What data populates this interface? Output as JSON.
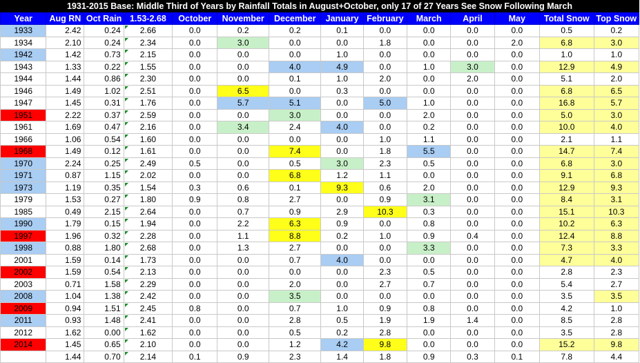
{
  "title": "1931-2015 Base: Middle Third of Years by Rainfall Totals in August+October, only 17 of 27 Years See Snow Following March",
  "headers": [
    "Year",
    "Aug RN",
    "Oct Rain",
    "1.53-2.68",
    "October",
    "November",
    "December",
    "January",
    "February",
    "March",
    "April",
    "May",
    "Total Snow",
    "Top Snow"
  ],
  "colors": {
    "title_bg": "#000000",
    "header_bg": "#0000ff",
    "year_blue": "#a9cdf3",
    "year_red": "#ff0000",
    "cell_yellow": "#ffff1a",
    "cell_green": "#c8f0c8",
    "cell_lightblue": "#a9cdf3",
    "total_paleyellow": "#ffff99"
  },
  "rows": [
    {
      "year": "1933",
      "year_hl": "blue",
      "cells": [
        "2.42",
        "0.24",
        "2.66",
        "0.0",
        "0.2",
        "0.2",
        "0.1",
        "0.0",
        "0.0",
        "0.0",
        "0.0",
        "0.5",
        "0.2"
      ],
      "hl": {}
    },
    {
      "year": "1934",
      "year_hl": "",
      "cells": [
        "2.10",
        "0.24",
        "2.34",
        "0.0",
        "3.0",
        "0.0",
        "0.0",
        "1.8",
        "0.0",
        "0.0",
        "2.0",
        "6.8",
        "3.0"
      ],
      "hl": {
        "5": "green",
        "12": "paleyellow",
        "13": "paleyellow"
      }
    },
    {
      "year": "1942",
      "year_hl": "blue",
      "cells": [
        "1.42",
        "0.73",
        "2.15",
        "0.0",
        "0.0",
        "0.0",
        "1.0",
        "0.0",
        "0.0",
        "0.0",
        "0.0",
        "1.0",
        "1.0"
      ],
      "hl": {}
    },
    {
      "year": "1943",
      "year_hl": "",
      "cells": [
        "1.33",
        "0.22",
        "1.55",
        "0.0",
        "0.0",
        "4.0",
        "4.9",
        "0.0",
        "1.0",
        "3.0",
        "0.0",
        "12.9",
        "4.9"
      ],
      "hl": {
        "6": "lightblue",
        "7": "lightblue",
        "10": "green",
        "12": "paleyellow",
        "13": "paleyellow"
      }
    },
    {
      "year": "1944",
      "year_hl": "",
      "cells": [
        "1.44",
        "0.86",
        "2.30",
        "0.0",
        "0.0",
        "0.1",
        "1.0",
        "2.0",
        "0.0",
        "2.0",
        "0.0",
        "5.1",
        "2.0"
      ],
      "hl": {}
    },
    {
      "year": "1946",
      "year_hl": "",
      "cells": [
        "1.49",
        "1.02",
        "2.51",
        "0.0",
        "6.5",
        "0.0",
        "0.3",
        "0.0",
        "0.0",
        "0.0",
        "0.0",
        "6.8",
        "6.5"
      ],
      "hl": {
        "5": "yellow",
        "12": "paleyellow",
        "13": "paleyellow"
      }
    },
    {
      "year": "1947",
      "year_hl": "",
      "cells": [
        "1.45",
        "0.31",
        "1.76",
        "0.0",
        "5.7",
        "5.1",
        "0.0",
        "5.0",
        "1.0",
        "0.0",
        "0.0",
        "16.8",
        "5.7"
      ],
      "hl": {
        "5": "lightblue",
        "6": "lightblue",
        "8": "lightblue",
        "12": "paleyellow",
        "13": "paleyellow"
      }
    },
    {
      "year": "1951",
      "year_hl": "red",
      "cells": [
        "2.22",
        "0.37",
        "2.59",
        "0.0",
        "0.0",
        "3.0",
        "0.0",
        "0.0",
        "2.0",
        "0.0",
        "0.0",
        "5.0",
        "3.0"
      ],
      "hl": {
        "6": "green",
        "12": "paleyellow",
        "13": "paleyellow"
      }
    },
    {
      "year": "1961",
      "year_hl": "",
      "cells": [
        "1.69",
        "0.47",
        "2.16",
        "0.0",
        "3.4",
        "2.4",
        "4.0",
        "0.0",
        "0.2",
        "0.0",
        "0.0",
        "10.0",
        "4.0"
      ],
      "hl": {
        "5": "green",
        "7": "lightblue",
        "12": "paleyellow",
        "13": "paleyellow"
      }
    },
    {
      "year": "1966",
      "year_hl": "",
      "cells": [
        "1.06",
        "0.54",
        "1.60",
        "0.0",
        "0.0",
        "0.0",
        "0.0",
        "1.0",
        "1.1",
        "0.0",
        "0.0",
        "2.1",
        "1.1"
      ],
      "hl": {}
    },
    {
      "year": "1968",
      "year_hl": "red",
      "cells": [
        "1.49",
        "0.12",
        "1.61",
        "0.0",
        "0.0",
        "7.4",
        "0.0",
        "1.8",
        "5.5",
        "0.0",
        "0.0",
        "14.7",
        "7.4"
      ],
      "hl": {
        "6": "yellow",
        "9": "lightblue",
        "12": "paleyellow",
        "13": "paleyellow"
      }
    },
    {
      "year": "1970",
      "year_hl": "blue",
      "cells": [
        "2.24",
        "0.25",
        "2.49",
        "0.5",
        "0.0",
        "0.5",
        "3.0",
        "2.3",
        "0.5",
        "0.0",
        "0.0",
        "6.8",
        "3.0"
      ],
      "hl": {
        "7": "green",
        "12": "paleyellow",
        "13": "paleyellow"
      }
    },
    {
      "year": "1971",
      "year_hl": "blue",
      "cells": [
        "0.87",
        "1.15",
        "2.02",
        "0.0",
        "0.0",
        "6.8",
        "1.2",
        "1.1",
        "0.0",
        "0.0",
        "0.0",
        "9.1",
        "6.8"
      ],
      "hl": {
        "6": "yellow",
        "12": "paleyellow",
        "13": "paleyellow"
      }
    },
    {
      "year": "1973",
      "year_hl": "blue",
      "cells": [
        "1.19",
        "0.35",
        "1.54",
        "0.3",
        "0.6",
        "0.1",
        "9.3",
        "0.6",
        "2.0",
        "0.0",
        "0.0",
        "12.9",
        "9.3"
      ],
      "hl": {
        "7": "yellow",
        "12": "paleyellow",
        "13": "paleyellow"
      }
    },
    {
      "year": "1979",
      "year_hl": "",
      "cells": [
        "1.53",
        "0.27",
        "1.80",
        "0.9",
        "0.8",
        "2.7",
        "0.0",
        "0.9",
        "3.1",
        "0.0",
        "0.0",
        "8.4",
        "3.1"
      ],
      "hl": {
        "9": "green",
        "12": "paleyellow",
        "13": "paleyellow"
      }
    },
    {
      "year": "1985",
      "year_hl": "",
      "cells": [
        "0.49",
        "2.15",
        "2.64",
        "0.0",
        "0.7",
        "0.9",
        "2.9",
        "10.3",
        "0.3",
        "0.0",
        "0.0",
        "15.1",
        "10.3"
      ],
      "hl": {
        "8": "yellow",
        "12": "paleyellow",
        "13": "paleyellow"
      }
    },
    {
      "year": "1990",
      "year_hl": "blue",
      "cells": [
        "1.79",
        "0.15",
        "1.94",
        "0.0",
        "2.2",
        "6.3",
        "0.9",
        "0.0",
        "0.8",
        "0.0",
        "0.0",
        "10.2",
        "6.3"
      ],
      "hl": {
        "6": "yellow",
        "12": "paleyellow",
        "13": "paleyellow"
      }
    },
    {
      "year": "1997",
      "year_hl": "red",
      "cells": [
        "1.96",
        "0.32",
        "2.28",
        "0.0",
        "1.1",
        "8.8",
        "0.2",
        "1.0",
        "0.9",
        "0.4",
        "0.0",
        "12.4",
        "8.8"
      ],
      "hl": {
        "6": "yellow",
        "12": "paleyellow",
        "13": "paleyellow"
      }
    },
    {
      "year": "1998",
      "year_hl": "blue",
      "cells": [
        "0.88",
        "1.80",
        "2.68",
        "0.0",
        "1.3",
        "2.7",
        "0.0",
        "0.0",
        "3.3",
        "0.0",
        "0.0",
        "7.3",
        "3.3"
      ],
      "hl": {
        "9": "green",
        "12": "paleyellow",
        "13": "paleyellow"
      }
    },
    {
      "year": "2001",
      "year_hl": "",
      "cells": [
        "1.59",
        "0.14",
        "1.73",
        "0.0",
        "0.0",
        "0.7",
        "4.0",
        "0.0",
        "0.0",
        "0.0",
        "0.0",
        "4.7",
        "4.0"
      ],
      "hl": {
        "7": "lightblue",
        "12": "paleyellow",
        "13": "paleyellow"
      }
    },
    {
      "year": "2002",
      "year_hl": "red",
      "cells": [
        "1.59",
        "0.54",
        "2.13",
        "0.0",
        "0.0",
        "0.0",
        "0.0",
        "2.3",
        "0.5",
        "0.0",
        "0.0",
        "2.8",
        "2.3"
      ],
      "hl": {}
    },
    {
      "year": "2003",
      "year_hl": "",
      "cells": [
        "0.71",
        "1.58",
        "2.29",
        "0.0",
        "0.0",
        "2.0",
        "0.0",
        "2.7",
        "0.7",
        "0.0",
        "0.0",
        "5.4",
        "2.7"
      ],
      "hl": {}
    },
    {
      "year": "2008",
      "year_hl": "blue",
      "cells": [
        "1.04",
        "1.38",
        "2.42",
        "0.0",
        "0.0",
        "3.5",
        "0.0",
        "0.0",
        "0.0",
        "0.0",
        "0.0",
        "3.5",
        "3.5"
      ],
      "hl": {
        "6": "green",
        "13": "paleyellow"
      }
    },
    {
      "year": "2009",
      "year_hl": "red",
      "cells": [
        "0.94",
        "1.51",
        "2.45",
        "0.8",
        "0.0",
        "0.7",
        "1.0",
        "0.9",
        "0.8",
        "0.0",
        "0.0",
        "4.2",
        "1.0"
      ],
      "hl": {}
    },
    {
      "year": "2011",
      "year_hl": "blue",
      "cells": [
        "0.93",
        "1.48",
        "2.41",
        "0.0",
        "0.0",
        "2.8",
        "0.5",
        "1.9",
        "1.9",
        "1.4",
        "0.0",
        "8.5",
        "2.8"
      ],
      "hl": {}
    },
    {
      "year": "2012",
      "year_hl": "",
      "cells": [
        "1.62",
        "0.00",
        "1.62",
        "0.0",
        "0.0",
        "0.5",
        "0.2",
        "2.8",
        "0.0",
        "0.0",
        "0.0",
        "3.5",
        "2.8"
      ],
      "hl": {}
    },
    {
      "year": "2014",
      "year_hl": "red",
      "cells": [
        "1.45",
        "0.65",
        "2.10",
        "0.0",
        "0.0",
        "1.2",
        "4.2",
        "9.8",
        "0.0",
        "0.0",
        "0.0",
        "15.2",
        "9.8"
      ],
      "hl": {
        "7": "lightblue",
        "8": "yellow",
        "12": "paleyellow",
        "13": "paleyellow"
      }
    },
    {
      "year": "",
      "year_hl": "",
      "cells": [
        "1.44",
        "0.70",
        "2.14",
        "0.1",
        "0.9",
        "2.3",
        "1.4",
        "1.8",
        "0.9",
        "0.3",
        "0.1",
        "7.8",
        "4.4"
      ],
      "hl": {}
    }
  ]
}
